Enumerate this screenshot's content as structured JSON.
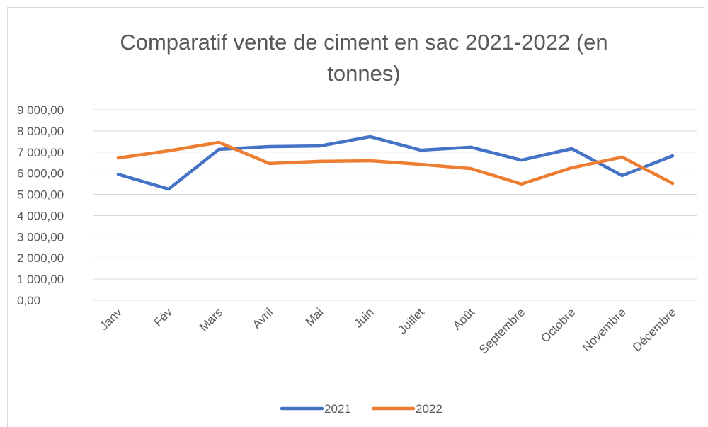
{
  "chart_data": {
    "type": "line",
    "title": "Comparatif vente de ciment en sac 2021-2022 (en tonnes)",
    "categories": [
      "Janv",
      "Fév",
      "Mars",
      "Avril",
      "Mai",
      "Juin",
      "Juillet",
      "Août",
      "Septembre",
      "Octobre",
      "Novembre",
      "Décembre"
    ],
    "series": [
      {
        "name": "2021",
        "color": "#4472c4",
        "values": [
          5950,
          5250,
          7130,
          7260,
          7290,
          7730,
          7090,
          7230,
          6620,
          7160,
          5890,
          6820
        ]
      },
      {
        "name": "2022",
        "color": "#ed7d31",
        "values": [
          6720,
          7060,
          7460,
          6460,
          6560,
          6590,
          6420,
          6220,
          5490,
          6260,
          6760,
          5520
        ]
      }
    ],
    "ylim": [
      0,
      9000
    ],
    "yticks": [
      {
        "value": 0,
        "label": "0,00"
      },
      {
        "value": 1000,
        "label": "1 000,00"
      },
      {
        "value": 2000,
        "label": "2 000,00"
      },
      {
        "value": 3000,
        "label": "3 000,00"
      },
      {
        "value": 4000,
        "label": "4 000,00"
      },
      {
        "value": 5000,
        "label": "5 000,00"
      },
      {
        "value": 6000,
        "label": "6 000,00"
      },
      {
        "value": 7000,
        "label": "7 000,00"
      },
      {
        "value": 8000,
        "label": "8 000,00"
      },
      {
        "value": 9000,
        "label": "9 000,00"
      }
    ],
    "grid": true,
    "legend": "bottom"
  }
}
